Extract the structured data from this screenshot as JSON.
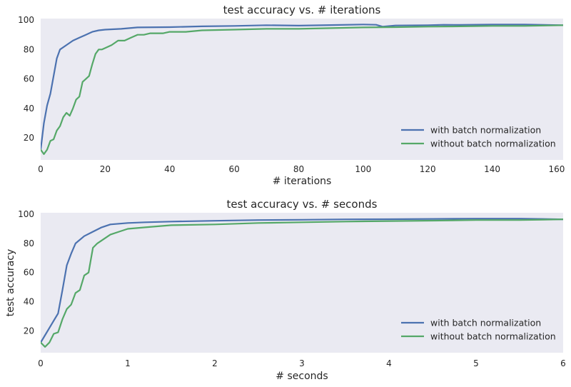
{
  "chart_data": [
    {
      "type": "line",
      "title": "test accuracy vs. # iterations",
      "xlabel": "# iterations",
      "ylabel": "",
      "xlim": [
        0,
        162
      ],
      "ylim": [
        5,
        101
      ],
      "xticks": [
        0,
        20,
        40,
        60,
        80,
        100,
        120,
        140,
        160
      ],
      "yticks": [
        20,
        40,
        60,
        80,
        100
      ],
      "grid": false,
      "legend": "lower-right",
      "series": [
        {
          "name": "with batch normalization",
          "color": "#4c72b0",
          "x": [
            0,
            1,
            2,
            3,
            4,
            5,
            6,
            8,
            10,
            12,
            14,
            16,
            18,
            20,
            25,
            30,
            40,
            50,
            60,
            70,
            80,
            90,
            100,
            104,
            106,
            110,
            120,
            125,
            130,
            140,
            150,
            162
          ],
          "y": [
            12,
            30,
            42,
            50,
            62,
            74,
            80,
            83,
            86,
            88,
            90,
            92,
            93,
            93.5,
            94,
            95,
            95.2,
            95.7,
            96,
            96.5,
            96.2,
            96.6,
            97,
            96.8,
            95.5,
            96.3,
            96.5,
            96.8,
            96.7,
            97,
            97,
            96.5
          ]
        },
        {
          "name": "without batch normalization",
          "color": "#55a868",
          "x": [
            0,
            1,
            2,
            3,
            4,
            5,
            6,
            7,
            8,
            9,
            10,
            11,
            12,
            13,
            14,
            15,
            16,
            17,
            18,
            19,
            20,
            22,
            24,
            26,
            28,
            30,
            32,
            34,
            36,
            38,
            40,
            45,
            50,
            60,
            70,
            80,
            90,
            100,
            110,
            120,
            130,
            140,
            150,
            162
          ],
          "y": [
            12,
            9,
            12,
            18,
            19,
            25,
            28,
            34,
            37,
            35,
            40,
            46,
            48,
            58,
            60,
            62,
            70,
            77,
            80,
            80,
            81,
            83,
            86,
            86,
            88,
            90,
            90,
            91,
            91,
            91,
            92,
            92,
            93,
            93.5,
            94,
            94,
            94.5,
            95,
            95.2,
            95.5,
            95.7,
            96,
            96,
            96.5
          ]
        }
      ]
    },
    {
      "type": "line",
      "title": "test accuracy vs. # seconds",
      "xlabel": "# seconds",
      "ylabel": "test accuracy",
      "xlim": [
        0,
        6
      ],
      "ylim": [
        5,
        101
      ],
      "xticks": [
        0,
        1,
        2,
        3,
        4,
        5,
        6
      ],
      "yticks": [
        20,
        40,
        60,
        80,
        100
      ],
      "grid": false,
      "legend": "lower-right",
      "series": [
        {
          "name": "with batch normalization",
          "color": "#4c72b0",
          "x": [
            0,
            0.05,
            0.1,
            0.15,
            0.2,
            0.25,
            0.3,
            0.35,
            0.4,
            0.5,
            0.6,
            0.7,
            0.8,
            0.9,
            1.0,
            1.2,
            1.5,
            2.0,
            2.5,
            3.0,
            3.5,
            4.0,
            4.5,
            5.0,
            5.5,
            6.0
          ],
          "y": [
            12,
            17,
            22,
            27,
            32,
            48,
            65,
            73,
            80,
            85,
            88,
            91,
            93,
            93.5,
            94,
            94.5,
            95,
            95.5,
            96,
            96.2,
            96.5,
            96.6,
            96.8,
            97,
            97,
            96.5
          ]
        },
        {
          "name": "without batch normalization",
          "color": "#55a868",
          "x": [
            0,
            0.05,
            0.1,
            0.15,
            0.2,
            0.25,
            0.3,
            0.35,
            0.4,
            0.45,
            0.5,
            0.55,
            0.6,
            0.65,
            0.7,
            0.75,
            0.8,
            0.9,
            1.0,
            1.2,
            1.5,
            2.0,
            2.5,
            3.0,
            3.5,
            4.0,
            4.5,
            5.0,
            5.5,
            6.0
          ],
          "y": [
            12,
            9,
            12,
            18,
            19,
            28,
            35,
            38,
            46,
            48,
            58,
            60,
            77,
            80,
            82,
            84,
            86,
            88,
            90,
            91,
            92.5,
            93,
            94,
            94.5,
            95,
            95.3,
            95.6,
            96,
            96,
            96.5
          ]
        }
      ]
    }
  ]
}
